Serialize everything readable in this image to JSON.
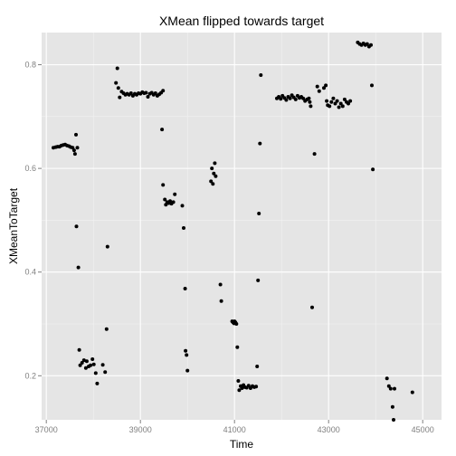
{
  "chart_data": {
    "type": "scatter",
    "title": "XMean flipped towards target",
    "xlabel": "Time",
    "ylabel": "XMeanToTarget",
    "xlim": [
      36900,
      45400
    ],
    "ylim": [
      0.115,
      0.862
    ],
    "x_ticks": [
      37000,
      39000,
      41000,
      43000,
      45000
    ],
    "x_tick_labels": [
      "37000",
      "39000",
      "41000",
      "43000",
      "45000"
    ],
    "y_ticks": [
      0.2,
      0.4,
      0.6,
      0.8
    ],
    "y_tick_labels": [
      "0.2",
      "0.4",
      "0.6",
      "0.8"
    ],
    "grid": true,
    "colors": {
      "panel": "#e5e5e5",
      "grid_major": "#ffffff",
      "grid_minor": "#f2f2f2",
      "point": "#000000"
    },
    "points": [
      [
        37150,
        0.64
      ],
      [
        37200,
        0.641
      ],
      [
        37240,
        0.642
      ],
      [
        37280,
        0.642
      ],
      [
        37320,
        0.644
      ],
      [
        37360,
        0.645
      ],
      [
        37400,
        0.646
      ],
      [
        37440,
        0.644
      ],
      [
        37480,
        0.643
      ],
      [
        37520,
        0.641
      ],
      [
        37560,
        0.64
      ],
      [
        37590,
        0.635
      ],
      [
        37610,
        0.628
      ],
      [
        37630,
        0.665
      ],
      [
        37660,
        0.64
      ],
      [
        37640,
        0.488
      ],
      [
        37680,
        0.409
      ],
      [
        37700,
        0.25
      ],
      [
        37720,
        0.22
      ],
      [
        37760,
        0.225
      ],
      [
        37800,
        0.23
      ],
      [
        37840,
        0.215
      ],
      [
        37860,
        0.228
      ],
      [
        37900,
        0.218
      ],
      [
        37940,
        0.22
      ],
      [
        37980,
        0.232
      ],
      [
        38010,
        0.222
      ],
      [
        38050,
        0.205
      ],
      [
        38080,
        0.185
      ],
      [
        38200,
        0.221
      ],
      [
        38250,
        0.207
      ],
      [
        38280,
        0.29
      ],
      [
        38300,
        0.449
      ],
      [
        38480,
        0.765
      ],
      [
        38510,
        0.793
      ],
      [
        38530,
        0.755
      ],
      [
        38560,
        0.737
      ],
      [
        38600,
        0.748
      ],
      [
        38640,
        0.745
      ],
      [
        38680,
        0.742
      ],
      [
        38720,
        0.744
      ],
      [
        38760,
        0.742
      ],
      [
        38800,
        0.745
      ],
      [
        38840,
        0.74
      ],
      [
        38880,
        0.744
      ],
      [
        38920,
        0.742
      ],
      [
        38960,
        0.745
      ],
      [
        39000,
        0.744
      ],
      [
        39040,
        0.747
      ],
      [
        39080,
        0.745
      ],
      [
        39120,
        0.746
      ],
      [
        39160,
        0.738
      ],
      [
        39200,
        0.744
      ],
      [
        39240,
        0.746
      ],
      [
        39280,
        0.742
      ],
      [
        39320,
        0.745
      ],
      [
        39360,
        0.74
      ],
      [
        39400,
        0.743
      ],
      [
        39440,
        0.746
      ],
      [
        39480,
        0.75
      ],
      [
        39460,
        0.675
      ],
      [
        39480,
        0.568
      ],
      [
        39520,
        0.54
      ],
      [
        39540,
        0.53
      ],
      [
        39570,
        0.535
      ],
      [
        39600,
        0.533
      ],
      [
        39630,
        0.537
      ],
      [
        39660,
        0.532
      ],
      [
        39700,
        0.535
      ],
      [
        39730,
        0.55
      ],
      [
        39890,
        0.528
      ],
      [
        39920,
        0.485
      ],
      [
        39950,
        0.368
      ],
      [
        39960,
        0.248
      ],
      [
        39980,
        0.24
      ],
      [
        40000,
        0.21
      ],
      [
        40500,
        0.575
      ],
      [
        40520,
        0.6
      ],
      [
        40540,
        0.57
      ],
      [
        40560,
        0.59
      ],
      [
        40580,
        0.61
      ],
      [
        40600,
        0.585
      ],
      [
        40700,
        0.376
      ],
      [
        40720,
        0.344
      ],
      [
        40950,
        0.305
      ],
      [
        40970,
        0.303
      ],
      [
        40990,
        0.301
      ],
      [
        41000,
        0.305
      ],
      [
        41020,
        0.303
      ],
      [
        41040,
        0.3
      ],
      [
        41060,
        0.255
      ],
      [
        41080,
        0.19
      ],
      [
        41100,
        0.172
      ],
      [
        41130,
        0.18
      ],
      [
        41160,
        0.176
      ],
      [
        41190,
        0.182
      ],
      [
        41220,
        0.178
      ],
      [
        41260,
        0.177
      ],
      [
        41300,
        0.181
      ],
      [
        41340,
        0.176
      ],
      [
        41380,
        0.18
      ],
      [
        41420,
        0.178
      ],
      [
        41460,
        0.179
      ],
      [
        41480,
        0.218
      ],
      [
        41500,
        0.384
      ],
      [
        41520,
        0.513
      ],
      [
        41540,
        0.648
      ],
      [
        41560,
        0.78
      ],
      [
        41900,
        0.735
      ],
      [
        41940,
        0.738
      ],
      [
        41980,
        0.734
      ],
      [
        42020,
        0.74
      ],
      [
        42060,
        0.736
      ],
      [
        42100,
        0.732
      ],
      [
        42140,
        0.738
      ],
      [
        42180,
        0.735
      ],
      [
        42220,
        0.741
      ],
      [
        42260,
        0.737
      ],
      [
        42300,
        0.733
      ],
      [
        42340,
        0.74
      ],
      [
        42380,
        0.736
      ],
      [
        42420,
        0.738
      ],
      [
        42460,
        0.735
      ],
      [
        42500,
        0.73
      ],
      [
        42540,
        0.733
      ],
      [
        42580,
        0.735
      ],
      [
        42600,
        0.728
      ],
      [
        42620,
        0.72
      ],
      [
        42650,
        0.332
      ],
      [
        42700,
        0.628
      ],
      [
        42760,
        0.758
      ],
      [
        42800,
        0.749
      ],
      [
        42900,
        0.755
      ],
      [
        42940,
        0.76
      ],
      [
        42960,
        0.73
      ],
      [
        42980,
        0.722
      ],
      [
        43020,
        0.72
      ],
      [
        43060,
        0.728
      ],
      [
        43100,
        0.735
      ],
      [
        43140,
        0.725
      ],
      [
        43180,
        0.73
      ],
      [
        43220,
        0.718
      ],
      [
        43260,
        0.725
      ],
      [
        43300,
        0.72
      ],
      [
        43340,
        0.733
      ],
      [
        43380,
        0.728
      ],
      [
        43420,
        0.725
      ],
      [
        43460,
        0.73
      ],
      [
        43620,
        0.843
      ],
      [
        43660,
        0.84
      ],
      [
        43700,
        0.838
      ],
      [
        43740,
        0.841
      ],
      [
        43780,
        0.838
      ],
      [
        43820,
        0.84
      ],
      [
        43860,
        0.835
      ],
      [
        43900,
        0.838
      ],
      [
        43920,
        0.76
      ],
      [
        43940,
        0.598
      ],
      [
        44240,
        0.195
      ],
      [
        44280,
        0.18
      ],
      [
        44320,
        0.175
      ],
      [
        44360,
        0.14
      ],
      [
        44380,
        0.115
      ],
      [
        44400,
        0.175
      ],
      [
        44780,
        0.168
      ]
    ]
  }
}
